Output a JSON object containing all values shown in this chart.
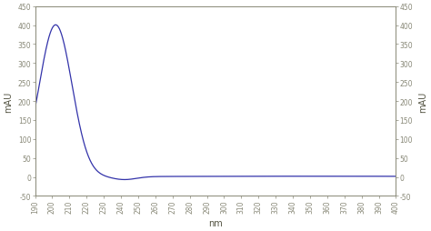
{
  "x_min": 190,
  "x_max": 400,
  "y_min": -50,
  "y_max": 450,
  "xlabel": "nm",
  "ylabel_left": "mAU",
  "ylabel_right": "mAU",
  "x_ticks": [
    190,
    200,
    210,
    220,
    230,
    240,
    250,
    260,
    270,
    280,
    290,
    300,
    310,
    320,
    330,
    340,
    350,
    360,
    370,
    380,
    390,
    400
  ],
  "y_ticks": [
    -50,
    0,
    50,
    100,
    150,
    200,
    250,
    300,
    350,
    400,
    450
  ],
  "line_color": "#3333aa",
  "bg_color": "#ffffff",
  "spine_color": "#888877",
  "tick_color": "#888877",
  "label_color": "#555544",
  "peak_nm": 202,
  "peak_mau": 400,
  "figwidth": 4.74,
  "figheight": 2.55,
  "dpi": 100
}
